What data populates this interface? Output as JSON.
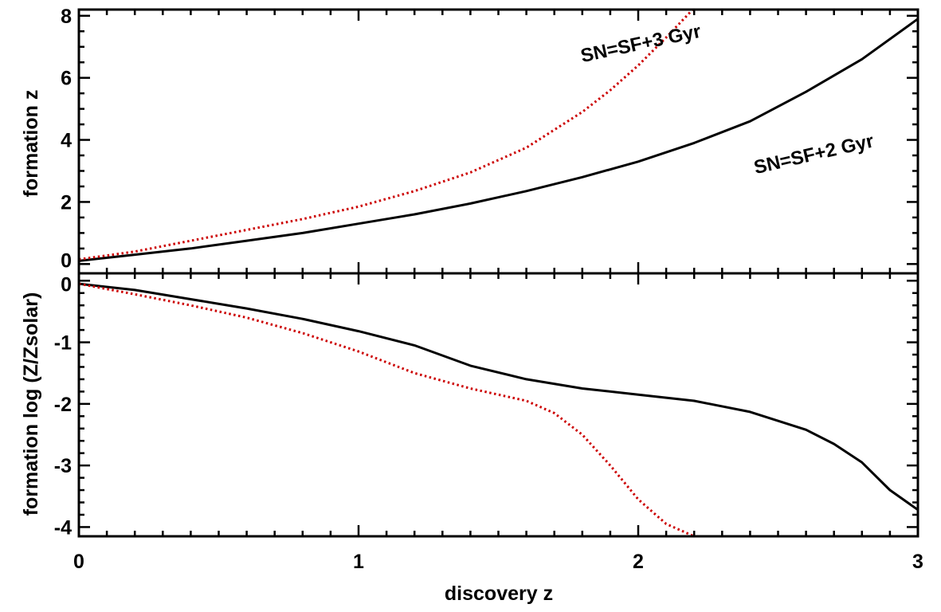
{
  "chart_data": [
    {
      "type": "line",
      "panel": "top",
      "ylabel": "formation z",
      "xlim": [
        0,
        3
      ],
      "ylim": [
        -0.3,
        8.2
      ],
      "ytick_values": [
        0,
        2,
        4,
        6,
        8
      ],
      "ytick_labels": [
        "0",
        "2",
        "4",
        "6",
        "8"
      ],
      "series": [
        {
          "key": "sf2",
          "style": "solid",
          "color": "#000000",
          "x": [
            0,
            0.2,
            0.4,
            0.6,
            0.8,
            1.0,
            1.2,
            1.4,
            1.6,
            1.8,
            2.0,
            2.2,
            2.4,
            2.6,
            2.8,
            3.0
          ],
          "y": [
            0.1,
            0.3,
            0.5,
            0.75,
            1.0,
            1.3,
            1.6,
            1.95,
            2.35,
            2.8,
            3.3,
            3.9,
            4.6,
            5.55,
            6.6,
            7.9
          ]
        },
        {
          "key": "sf3",
          "style": "dotted",
          "color": "#cc0000",
          "x": [
            0,
            0.2,
            0.4,
            0.6,
            0.8,
            1.0,
            1.2,
            1.4,
            1.6,
            1.8,
            1.9,
            2.0,
            2.1,
            2.2
          ],
          "y": [
            0.15,
            0.4,
            0.75,
            1.1,
            1.45,
            1.85,
            2.35,
            2.95,
            3.75,
            4.9,
            5.6,
            6.4,
            7.3,
            8.25
          ]
        }
      ],
      "annotations": [
        {
          "text": "SN=SF+3 Gyr",
          "x": 1.8,
          "y": 6.5,
          "angle": -12
        },
        {
          "text": "SN=SF+2 Gyr",
          "x": 2.42,
          "y": 2.9,
          "angle": -13
        }
      ]
    },
    {
      "type": "line",
      "panel": "bottom",
      "xlabel": "discovery z",
      "ylabel": "formation log (Z/Zsolar)",
      "xlim": [
        0,
        3
      ],
      "ylim": [
        -4.15,
        0.12
      ],
      "xtick_values": [
        0,
        1,
        2,
        3
      ],
      "xtick_labels": [
        "0",
        "1",
        "2",
        "3"
      ],
      "ytick_values": [
        0,
        -1,
        -2,
        -3,
        -4
      ],
      "ytick_labels": [
        "0",
        "-1",
        "-2",
        "-3",
        "-4"
      ],
      "series": [
        {
          "key": "sf2",
          "style": "solid",
          "color": "#000000",
          "x": [
            0,
            0.2,
            0.4,
            0.6,
            0.8,
            1.0,
            1.2,
            1.4,
            1.6,
            1.8,
            2.0,
            2.2,
            2.4,
            2.6,
            2.7,
            2.8,
            2.9,
            3.0
          ],
          "y": [
            -0.05,
            -0.15,
            -0.3,
            -0.45,
            -0.62,
            -0.82,
            -1.05,
            -1.38,
            -1.6,
            -1.75,
            -1.85,
            -1.95,
            -2.13,
            -2.42,
            -2.65,
            -2.95,
            -3.4,
            -3.72
          ]
        },
        {
          "key": "sf3",
          "style": "dotted",
          "color": "#cc0000",
          "x": [
            0,
            0.2,
            0.4,
            0.6,
            0.8,
            1.0,
            1.2,
            1.4,
            1.6,
            1.7,
            1.8,
            1.9,
            2.0,
            2.1,
            2.2,
            2.4,
            2.6,
            2.8,
            3.0
          ],
          "y": [
            -0.05,
            -0.22,
            -0.4,
            -0.6,
            -0.85,
            -1.15,
            -1.5,
            -1.75,
            -1.95,
            -2.15,
            -2.5,
            -3.0,
            -3.55,
            -3.95,
            -4.15,
            -4.15,
            -4.15,
            -4.15,
            -4.15
          ]
        }
      ]
    }
  ]
}
